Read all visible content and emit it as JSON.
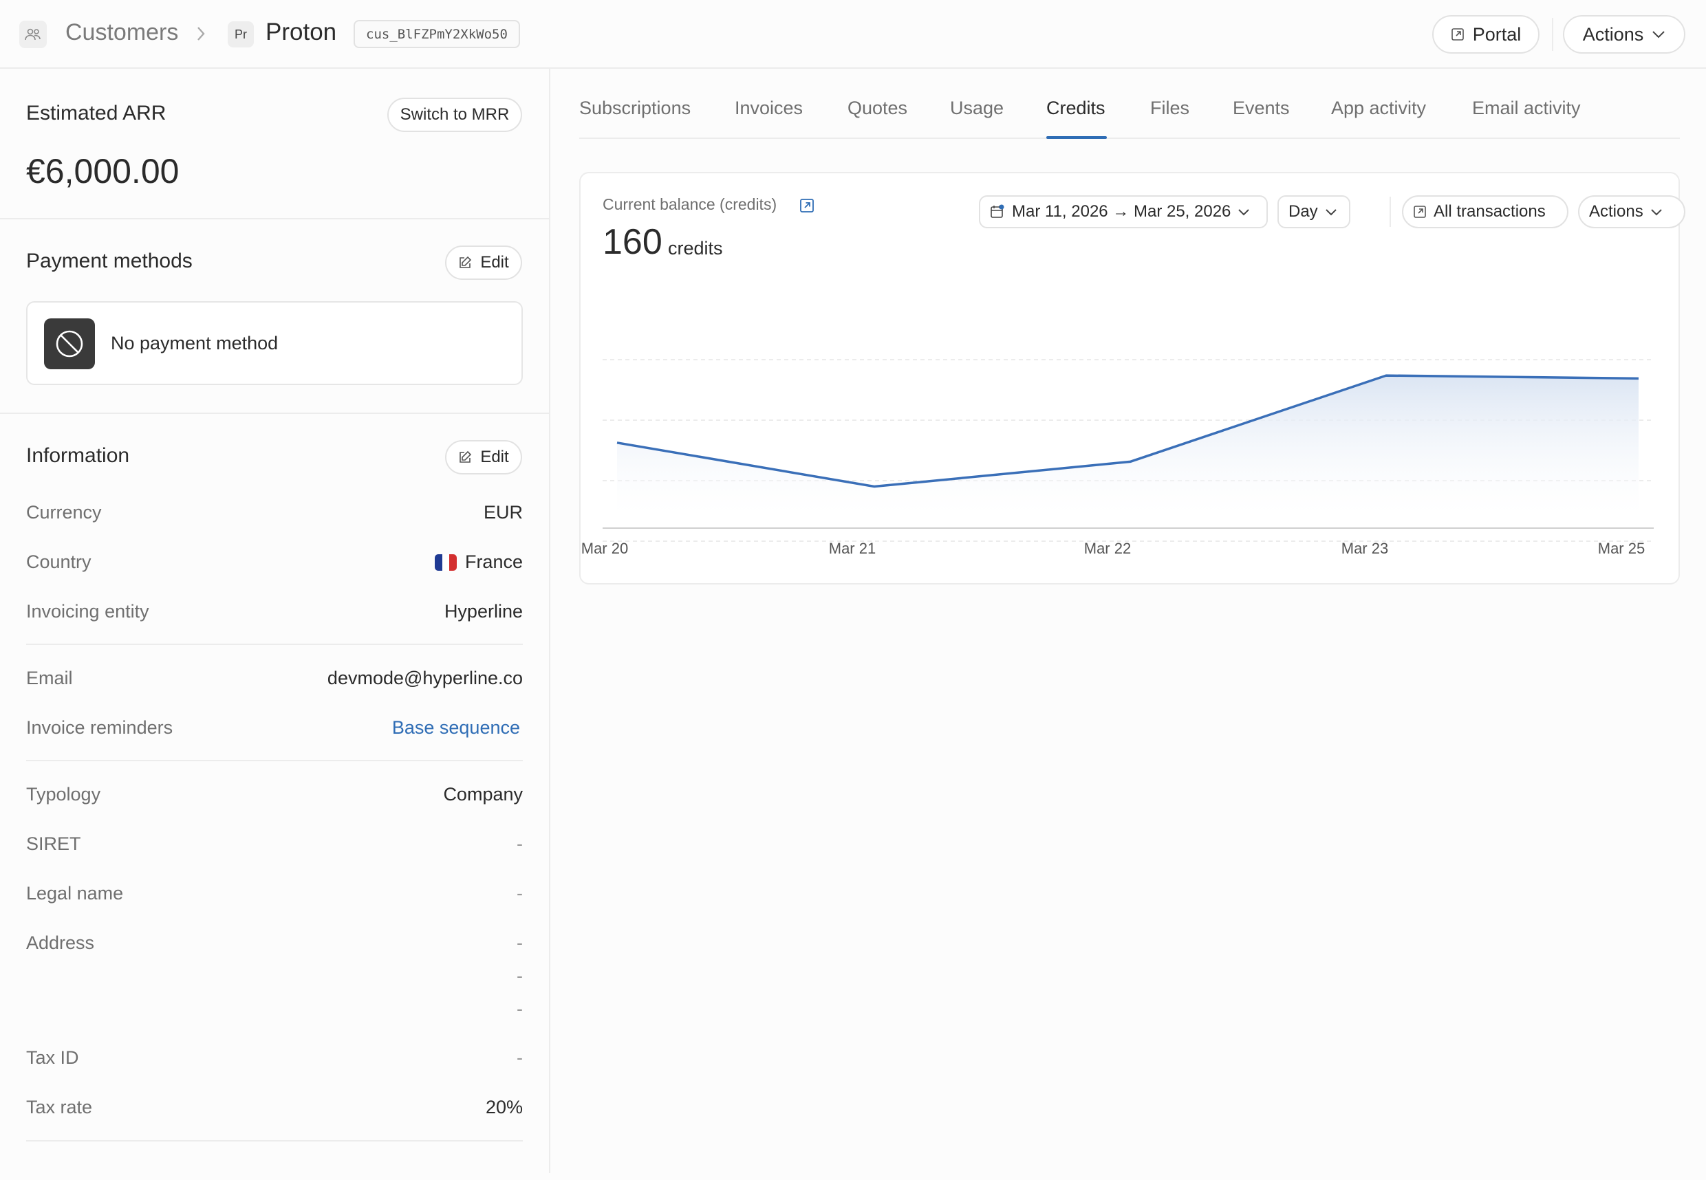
{
  "header": {
    "breadcrumb_root": "Customers",
    "avatar_initials": "Pr",
    "customer_name": "Proton",
    "customer_id": "cus_BlFZPmY2XkWo50",
    "portal_label": "Portal",
    "actions_label": "Actions"
  },
  "arr": {
    "title": "Estimated ARR",
    "switch_label": "Switch to MRR",
    "value": "€6,000.00"
  },
  "payment": {
    "title": "Payment methods",
    "edit_label": "Edit",
    "empty_text": "No payment method"
  },
  "information": {
    "title": "Information",
    "edit_label": "Edit",
    "rows": [
      {
        "label": "Currency",
        "value": "EUR"
      },
      {
        "label": "Country",
        "value": "France"
      },
      {
        "label": "Invoicing entity",
        "value": "Hyperline"
      },
      {
        "label": "Email",
        "value": "devmode@hyperline.co"
      },
      {
        "label": "Invoice reminders",
        "value": "Base sequence"
      },
      {
        "label": "Typology",
        "value": "Company"
      },
      {
        "label": "SIRET",
        "value": "-"
      },
      {
        "label": "Legal name",
        "value": "-"
      },
      {
        "label": "Address",
        "value": "-",
        "value2": "-",
        "value3": "-"
      },
      {
        "label": "Tax ID",
        "value": "-"
      },
      {
        "label": "Tax rate",
        "value": "20%"
      }
    ]
  },
  "tabs": [
    "Subscriptions",
    "Invoices",
    "Quotes",
    "Usage",
    "Credits",
    "Files",
    "Events",
    "App activity",
    "Email activity"
  ],
  "active_tab": "Credits",
  "credits": {
    "balance_label": "Current balance (credits)",
    "balance_value": "160",
    "balance_unit": "credits",
    "date_range": "Mar 11, 2026 → Mar 25, 2026",
    "granularity": "Day",
    "transactions_label": "All transactions",
    "actions_label": "Actions"
  },
  "colors": {
    "accent": "#2f6db5",
    "line": "#3a6fb8",
    "area_top": "#dbe5f3"
  },
  "chart_data": {
    "type": "area",
    "x": [
      "Mar 20",
      "Mar 21",
      "Mar 22",
      "Mar 23",
      "Mar 25"
    ],
    "series": [
      {
        "values": [
          100,
          70,
          87,
          146,
          144
        ]
      }
    ],
    "ylim": [
      50,
      155
    ],
    "grid": true,
    "title": "",
    "xlabel": "",
    "ylabel": ""
  }
}
